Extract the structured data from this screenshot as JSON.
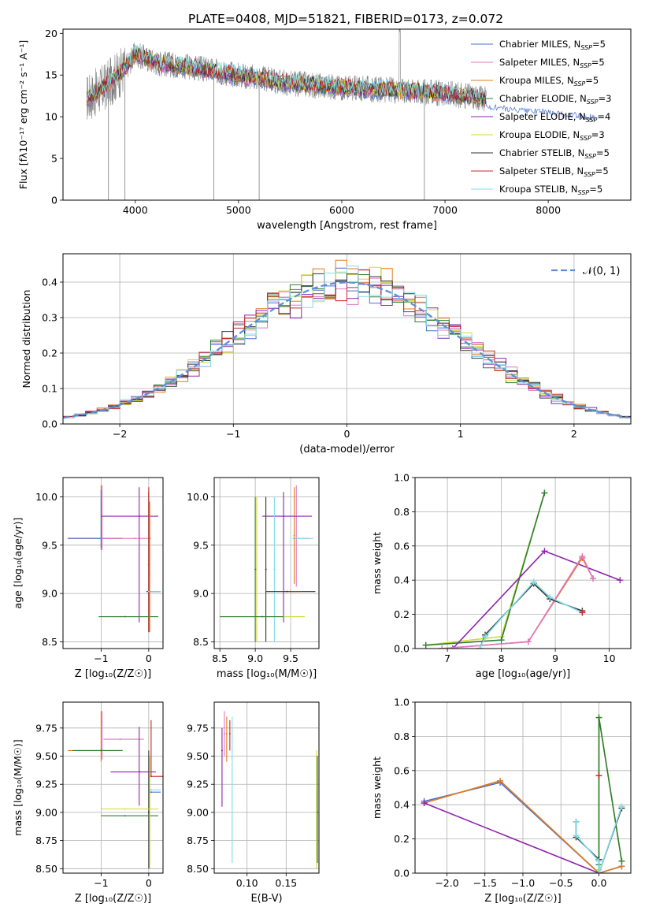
{
  "figure_title": "PLATE=0408, MJD=51821, FIBERID=0173, z=0.072",
  "colors": {
    "chabrier_miles": "#4a6fd6",
    "salpeter_miles": "#e377c2",
    "kroupa_miles": "#e07b1a",
    "chabrier_elodie": "#2e7d32",
    "salpeter_elodie": "#8e24aa",
    "kroupa_elodie": "#cddc39",
    "chabrier_stelib": "#333333",
    "salpeter_stelib": "#c62828",
    "kroupa_stelib": "#80deea",
    "data": "#7f7f7f",
    "normal": "#5b8fd9"
  },
  "chart_data": [
    {
      "id": "spectrum",
      "type": "line",
      "xlabel": "wavelength [Angstrom, rest frame]",
      "ylabel": "Flux [fλ10⁻¹⁷ erg cm⁻² s⁻¹ A⁻¹]",
      "xlim": [
        3300,
        8800
      ],
      "ylim": [
        0,
        20.5
      ],
      "xticks": [
        4000,
        5000,
        6000,
        7000,
        8000
      ],
      "yticks": [
        0,
        5,
        10,
        15,
        20
      ],
      "grid": false,
      "legend_position": "top-right",
      "continuum": {
        "x": [
          3530,
          3700,
          3900,
          4000,
          4200,
          4500,
          5000,
          5500,
          6000,
          6500,
          7000,
          7400
        ],
        "y": [
          12.2,
          13.5,
          15.8,
          17.5,
          16.5,
          16.0,
          15.0,
          14.0,
          13.5,
          13.2,
          12.8,
          12.2
        ]
      },
      "series": [
        {
          "name": "Chabrier MILES, N_SSP=5",
          "color_key": "chabrier_miles"
        },
        {
          "name": "Salpeter MILES, N_SSP=5",
          "color_key": "salpeter_miles"
        },
        {
          "name": "Kroupa MILES, N_SSP=5",
          "color_key": "kroupa_miles"
        },
        {
          "name": "Chabrier ELODIE, N_SSP=3",
          "color_key": "chabrier_elodie"
        },
        {
          "name": "Salpeter ELODIE, N_SSP=4",
          "color_key": "salpeter_elodie"
        },
        {
          "name": "Kroupa ELODIE, N_SSP=3",
          "color_key": "kroupa_elodie"
        },
        {
          "name": "Chabrier STELIB, N_SSP=5",
          "color_key": "chabrier_stelib"
        },
        {
          "name": "Salpeter STELIB, N_SSP=5",
          "color_key": "salpeter_stelib"
        },
        {
          "name": "Kroupa STELIB, N_SSP=5",
          "color_key": "kroupa_stelib"
        }
      ]
    },
    {
      "id": "residuals",
      "type": "line",
      "xlabel": "(data-model)/error",
      "ylabel": "Normed distribution",
      "xlim": [
        -2.5,
        2.5
      ],
      "ylim": [
        0,
        0.48
      ],
      "xticks": [
        -2,
        -1,
        0,
        1,
        2
      ],
      "yticks": [
        0.0,
        0.1,
        0.2,
        0.3,
        0.4
      ],
      "grid": true,
      "legend_position": "top-right",
      "legend_label": "𝒩(0, 1)",
      "normal": {
        "mean": 0,
        "sigma": 1
      },
      "bin_width": 0.1
    },
    {
      "id": "age_vs_z",
      "type": "scatter",
      "xlabel": "Z [log₁₀(Z/Z☉)]",
      "ylabel": "age  [log₁₀(age/yr)]",
      "xlim": [
        -1.8,
        0.3
      ],
      "ylim": [
        8.43,
        10.2
      ],
      "xticks": [
        -1,
        0
      ],
      "yticks": [
        8.5,
        9.0,
        9.5,
        10.0
      ],
      "grid": true,
      "errorbars": [
        {
          "x": -1.0,
          "xerr": [
            0.7,
            0.45
          ],
          "y": 9.57,
          "yerr": [
            0.12,
            0.55
          ],
          "color_key": "kroupa_miles"
        },
        {
          "x": -0.98,
          "xerr": [
            0.0,
            0.0
          ],
          "y": 9.57,
          "yerr": [
            0.12,
            0.55
          ],
          "color_key": "salpeter_miles"
        },
        {
          "x": -1.0,
          "xerr": [
            0.7,
            0.45
          ],
          "y": 9.57,
          "yerr": [
            0.1,
            0.5
          ],
          "color_key": "chabrier_miles"
        },
        {
          "x": -0.3,
          "xerr": [
            0.7,
            0.35
          ],
          "y": 9.57,
          "yerr": [
            0.0,
            0.0
          ],
          "color_key": "salpeter_miles"
        },
        {
          "x": -0.2,
          "xerr": [
            0.8,
            0.4
          ],
          "y": 9.8,
          "yerr": [
            1.1,
            0.3
          ],
          "color_key": "salpeter_elodie"
        },
        {
          "x": 0.0,
          "xerr": [
            0.0,
            0.0
          ],
          "y": 9.0,
          "yerr": [
            0.4,
            1.05
          ],
          "color_key": "chabrier_stelib"
        },
        {
          "x": 0.0,
          "xerr": [
            0.0,
            0.0
          ],
          "y": 9.3,
          "yerr": [
            0.7,
            0.8
          ],
          "color_key": "salpeter_stelib"
        },
        {
          "x": 0.0,
          "xerr": [
            0.05,
            0.25
          ],
          "y": 9.02,
          "yerr": [
            0.0,
            0.0
          ],
          "color_key": "chabrier_stelib"
        },
        {
          "x": 0.0,
          "xerr": [
            0.0,
            0.25
          ],
          "y": 9.02,
          "yerr": [
            0.0,
            0.0
          ],
          "color_key": "kroupa_stelib"
        },
        {
          "x": -0.6,
          "xerr": [
            0.45,
            0.8
          ],
          "y": 8.76,
          "yerr": [
            0.0,
            0.0
          ],
          "color_key": "kroupa_elodie"
        },
        {
          "x": -0.5,
          "xerr": [
            0.55,
            0.7
          ],
          "y": 8.76,
          "yerr": [
            0.0,
            0.0
          ],
          "color_key": "chabrier_elodie"
        },
        {
          "x": 0.02,
          "xerr": [
            0.0,
            0.0
          ],
          "y": 9.2,
          "yerr": [
            0.6,
            0.75
          ],
          "color_key": "kroupa_miles"
        }
      ]
    },
    {
      "id": "age_vs_mass",
      "type": "scatter",
      "xlabel": "mass [log₁₀(M/M☉)]",
      "ylabel": "",
      "xlim": [
        8.42,
        9.9
      ],
      "ylim": [
        8.43,
        10.2
      ],
      "xticks": [
        8.5,
        9.0,
        9.5
      ],
      "yticks": [
        8.5,
        9.0,
        9.5,
        10.0
      ],
      "grid": true,
      "errorbars": [
        {
          "x": 9.55,
          "xerr": [
            0.0,
            0.0
          ],
          "y": 9.6,
          "yerr": [
            0.5,
            0.5
          ],
          "color_key": "kroupa_miles"
        },
        {
          "x": 9.58,
          "xerr": [
            0.05,
            0.2
          ],
          "y": 9.57,
          "yerr": [
            0.5,
            0.55
          ],
          "color_key": "salpeter_miles"
        },
        {
          "x": 9.6,
          "xerr": [
            0.05,
            0.22
          ],
          "y": 9.57,
          "yerr": [
            0.0,
            0.0
          ],
          "color_key": "kroupa_stelib"
        },
        {
          "x": 9.4,
          "xerr": [
            0.3,
            0.4
          ],
          "y": 9.8,
          "yerr": [
            1.1,
            0.25
          ],
          "color_key": "salpeter_elodie"
        },
        {
          "x": 9.0,
          "xerr": [
            0.0,
            0.0
          ],
          "y": 9.25,
          "yerr": [
            0.75,
            0.75
          ],
          "color_key": "chabrier_elodie"
        },
        {
          "x": 9.02,
          "xerr": [
            0.0,
            0.0
          ],
          "y": 9.25,
          "yerr": [
            0.75,
            0.75
          ],
          "color_key": "kroupa_elodie"
        },
        {
          "x": 9.15,
          "xerr": [
            0.0,
            0.0
          ],
          "y": 9.25,
          "yerr": [
            0.75,
            0.75
          ],
          "color_key": "chabrier_stelib"
        },
        {
          "x": 9.27,
          "xerr": [
            0.0,
            0.0
          ],
          "y": 9.25,
          "yerr": [
            0.75,
            0.75
          ],
          "color_key": "kroupa_stelib"
        },
        {
          "x": 9.45,
          "xerr": [
            0.3,
            0.4
          ],
          "y": 9.02,
          "yerr": [
            0.0,
            0.0
          ],
          "color_key": "chabrier_stelib"
        },
        {
          "x": 9.5,
          "xerr": [
            0.0,
            0.15
          ],
          "y": 9.02,
          "yerr": [
            0.0,
            0.0
          ],
          "color_key": "salpeter_stelib"
        },
        {
          "x": 9.2,
          "xerr": [
            0.7,
            0.5
          ],
          "y": 8.76,
          "yerr": [
            0.0,
            0.0
          ],
          "color_key": "kroupa_elodie"
        },
        {
          "x": 9.1,
          "xerr": [
            0.6,
            0.3
          ],
          "y": 8.76,
          "yerr": [
            0.0,
            0.0
          ],
          "color_key": "chabrier_elodie"
        }
      ]
    },
    {
      "id": "weight_vs_age",
      "type": "line",
      "xlabel": "age  [log₁₀(age/yr)]",
      "ylabel": "mass weight",
      "xlim": [
        6.4,
        10.4
      ],
      "ylim": [
        0.0,
        1.0
      ],
      "xticks": [
        7,
        8,
        9,
        10
      ],
      "yticks": [
        0.0,
        0.2,
        0.4,
        0.6,
        0.8,
        1.0
      ],
      "grid": true,
      "series": [
        {
          "color_key": "kroupa_elodie",
          "x": [
            6.6,
            8.0,
            8.8
          ],
          "y": [
            0.02,
            0.07,
            0.91
          ]
        },
        {
          "color_key": "chabrier_elodie",
          "x": [
            6.6,
            8.0,
            8.8
          ],
          "y": [
            0.02,
            0.05,
            0.91
          ]
        },
        {
          "color_key": "salpeter_elodie",
          "x": [
            7.1,
            8.8,
            10.2
          ],
          "y": [
            0.0,
            0.57,
            0.4
          ]
        },
        {
          "color_key": "kroupa_miles",
          "x": [
            6.9,
            8.5,
            9.5,
            9.7
          ],
          "y": [
            0.0,
            0.04,
            0.53,
            0.41
          ]
        },
        {
          "color_key": "salpeter_miles",
          "x": [
            6.9,
            8.5,
            9.5,
            9.7
          ],
          "y": [
            0.0,
            0.04,
            0.54,
            0.41
          ]
        },
        {
          "color_key": "chabrier_stelib",
          "x": [
            7.6,
            7.7,
            8.6,
            8.9,
            9.5
          ],
          "y": [
            0.0,
            0.08,
            0.38,
            0.29,
            0.22
          ]
        },
        {
          "color_key": "kroupa_stelib",
          "x": [
            7.6,
            7.7,
            8.6,
            8.9,
            9.5
          ],
          "y": [
            0.0,
            0.07,
            0.39,
            0.3,
            0.21
          ]
        },
        {
          "color_key": "salpeter_stelib",
          "x": [
            9.5
          ],
          "y": [
            0.21
          ]
        }
      ]
    },
    {
      "id": "mass_vs_z",
      "type": "scatter",
      "xlabel": "Z [log₁₀(Z/Z☉)]",
      "ylabel": "mass [log₁₀(M/M☉)]",
      "xlim": [
        -1.8,
        0.3
      ],
      "ylim": [
        8.46,
        9.98
      ],
      "xticks": [
        -1,
        0
      ],
      "yticks": [
        8.5,
        8.75,
        9.0,
        9.25,
        9.5,
        9.75
      ],
      "grid": true,
      "errorbars": [
        {
          "x": -1.0,
          "xerr": [
            0.7,
            0.45
          ],
          "y": 9.55,
          "yerr": [
            0.1,
            0.35
          ],
          "color_key": "kroupa_miles"
        },
        {
          "x": -0.98,
          "xerr": [
            0.0,
            0.0
          ],
          "y": 9.55,
          "yerr": [
            0.08,
            0.35
          ],
          "color_key": "salpeter_miles"
        },
        {
          "x": -1.0,
          "xerr": [
            0.6,
            0.45
          ],
          "y": 9.55,
          "yerr": [
            0.0,
            0.0
          ],
          "color_key": "chabrier_elodie"
        },
        {
          "x": -0.6,
          "xerr": [
            0.35,
            0.5
          ],
          "y": 9.65,
          "yerr": [
            0.0,
            0.0
          ],
          "color_key": "salpeter_miles"
        },
        {
          "x": -0.2,
          "xerr": [
            0.6,
            0.35
          ],
          "y": 9.36,
          "yerr": [
            0.3,
            0.4
          ],
          "color_key": "salpeter_elodie"
        },
        {
          "x": 0.05,
          "xerr": [
            0.0,
            0.25
          ],
          "y": 9.32,
          "yerr": [
            0.0,
            0.5
          ],
          "color_key": "salpeter_stelib"
        },
        {
          "x": 0.05,
          "xerr": [
            0.05,
            0.2
          ],
          "y": 9.2,
          "yerr": [
            0.0,
            0.0
          ],
          "color_key": "kroupa_stelib"
        },
        {
          "x": 0.05,
          "xerr": [
            0.05,
            0.2
          ],
          "y": 9.18,
          "yerr": [
            0.0,
            0.0
          ],
          "color_key": "chabrier_miles"
        },
        {
          "x": 0.0,
          "xerr": [
            0.0,
            0.0
          ],
          "y": 9.0,
          "yerr": [
            0.5,
            0.55
          ],
          "color_key": "chabrier_stelib"
        },
        {
          "x": -0.5,
          "xerr": [
            0.5,
            0.7
          ],
          "y": 9.03,
          "yerr": [
            0.0,
            0.0
          ],
          "color_key": "kroupa_elodie"
        },
        {
          "x": -0.5,
          "xerr": [
            0.5,
            0.7
          ],
          "y": 8.97,
          "yerr": [
            0.0,
            0.0
          ],
          "color_key": "chabrier_elodie"
        },
        {
          "x": 0.02,
          "xerr": [
            0.0,
            0.0
          ],
          "y": 8.8,
          "yerr": [
            0.3,
            0.7
          ],
          "color_key": "kroupa_elodie"
        }
      ]
    },
    {
      "id": "mass_vs_ebv",
      "type": "scatter",
      "xlabel": "E(B-V)",
      "ylabel": "",
      "xlim": [
        0.058,
        0.192
      ],
      "ylim": [
        8.46,
        9.98
      ],
      "xticks": [
        0.1,
        0.15
      ],
      "yticks": [
        8.5,
        8.75,
        9.0,
        9.25,
        9.5,
        9.75
      ],
      "grid": true,
      "errorbars": [
        {
          "x": 0.068,
          "y": 9.55,
          "yerr": [
            0.5,
            0.2
          ],
          "color_key": "salpeter_elodie"
        },
        {
          "x": 0.071,
          "y": 9.7,
          "yerr": [
            0.2,
            0.2
          ],
          "color_key": "salpeter_miles"
        },
        {
          "x": 0.074,
          "y": 9.7,
          "yerr": [
            0.25,
            0.15
          ],
          "color_key": "kroupa_miles"
        },
        {
          "x": 0.078,
          "y": 9.7,
          "yerr": [
            0.15,
            0.12
          ],
          "color_key": "salpeter_stelib"
        },
        {
          "x": 0.081,
          "y": 9.25,
          "yerr": [
            0.7,
            0.6
          ],
          "color_key": "kroupa_stelib"
        },
        {
          "x": 0.189,
          "y": 9.0,
          "yerr": [
            0.5,
            0.55
          ],
          "color_key": "kroupa_elodie"
        },
        {
          "x": 0.19,
          "y": 9.0,
          "yerr": [
            0.45,
            0.5
          ],
          "color_key": "chabrier_elodie"
        }
      ]
    },
    {
      "id": "weight_vs_z",
      "type": "line",
      "xlabel": "Z [log₁₀(Z/Z☉)]",
      "ylabel": "mass weight",
      "xlim": [
        -2.42,
        0.42
      ],
      "ylim": [
        0.0,
        1.0
      ],
      "xticks": [
        -2.0,
        -1.5,
        -1.0,
        -0.5,
        0.0
      ],
      "yticks": [
        0.0,
        0.2,
        0.4,
        0.6,
        0.8,
        1.0
      ],
      "grid": true,
      "series": [
        {
          "color_key": "chabrier_miles",
          "x": [
            -2.3,
            -1.3,
            0.0,
            0.3
          ],
          "y": [
            0.42,
            0.53,
            0.0,
            0.04
          ]
        },
        {
          "color_key": "kroupa_miles",
          "x": [
            -2.3,
            -1.3,
            0.0,
            0.3
          ],
          "y": [
            0.41,
            0.54,
            0.0,
            0.04
          ]
        },
        {
          "color_key": "salpeter_elodie",
          "x": [
            -2.3,
            0.0
          ],
          "y": [
            0.41,
            0.0
          ]
        },
        {
          "color_key": "kroupa_elodie",
          "x": [
            0.0,
            0.0,
            0.3
          ],
          "y": [
            0.02,
            0.91,
            0.07
          ]
        },
        {
          "color_key": "chabrier_elodie",
          "x": [
            0.0,
            0.0,
            0.3
          ],
          "y": [
            0.05,
            0.91,
            0.07
          ]
        },
        {
          "color_key": "chabrier_stelib",
          "x": [
            -0.3,
            -0.3,
            0.0,
            0.0,
            0.3
          ],
          "y": [
            0.3,
            0.21,
            0.08,
            0.0,
            0.38
          ]
        },
        {
          "color_key": "kroupa_stelib",
          "x": [
            -0.3,
            -0.3,
            0.0,
            0.0,
            0.3
          ],
          "y": [
            0.3,
            0.22,
            0.07,
            0.0,
            0.39
          ]
        },
        {
          "color_key": "salpeter_stelib",
          "x": [
            0.0
          ],
          "y": [
            0.57
          ]
        }
      ]
    }
  ]
}
